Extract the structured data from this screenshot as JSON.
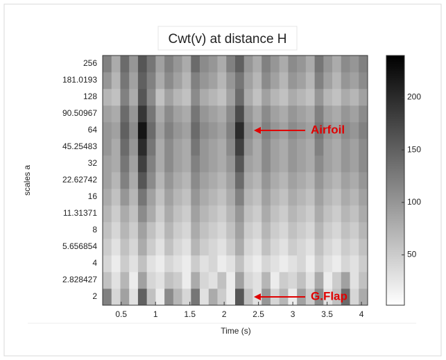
{
  "chart_data": {
    "type": "heatmap",
    "title": "Cwt(v) at distance H",
    "x_label": "Time (s)",
    "y_label": "scales a",
    "rows": [
      2,
      2.828427,
      4,
      5.656854,
      8,
      11.31371,
      16,
      22.62742,
      32,
      45.25483,
      64,
      90.50967,
      128,
      181.0193,
      256
    ],
    "xlim": [
      0.23,
      4.09
    ],
    "xticks": [
      0.5,
      1,
      1.5,
      2,
      2.5,
      3,
      3.5,
      4
    ],
    "colormap": "gray-reversed",
    "clim": [
      2,
      240
    ],
    "colorbar_ticks": [
      50,
      100,
      150,
      200
    ],
    "annotations": [
      "Airfoil",
      "G.Flap"
    ],
    "values": [
      [
        120,
        40,
        90,
        30,
        150,
        60,
        20,
        110,
        70,
        40,
        130,
        30,
        80,
        50,
        20,
        160,
        60,
        30,
        100,
        40,
        70,
        20,
        90,
        50,
        110,
        30,
        60,
        140,
        40,
        80
      ],
      [
        60,
        30,
        70,
        20,
        90,
        40,
        30,
        60,
        50,
        20,
        80,
        40,
        30,
        60,
        20,
        90,
        40,
        30,
        70,
        20,
        50,
        40,
        60,
        30,
        80,
        20,
        50,
        90,
        30,
        60
      ],
      [
        40,
        20,
        50,
        30,
        60,
        30,
        20,
        40,
        30,
        20,
        50,
        30,
        40,
        20,
        30,
        60,
        30,
        20,
        40,
        30,
        20,
        30,
        40,
        20,
        50,
        30,
        20,
        40,
        30,
        50
      ],
      [
        50,
        30,
        60,
        40,
        80,
        50,
        30,
        60,
        40,
        30,
        70,
        50,
        40,
        30,
        50,
        80,
        40,
        30,
        60,
        40,
        30,
        50,
        40,
        30,
        60,
        40,
        30,
        50,
        40,
        60
      ],
      [
        60,
        40,
        70,
        50,
        90,
        60,
        40,
        70,
        50,
        40,
        80,
        60,
        50,
        40,
        60,
        90,
        50,
        40,
        70,
        50,
        40,
        60,
        50,
        40,
        70,
        50,
        40,
        60,
        50,
        70
      ],
      [
        70,
        50,
        80,
        60,
        110,
        80,
        50,
        80,
        60,
        50,
        90,
        70,
        60,
        50,
        70,
        100,
        60,
        50,
        80,
        60,
        50,
        70,
        60,
        50,
        80,
        60,
        50,
        70,
        60,
        80
      ],
      [
        80,
        60,
        100,
        70,
        130,
        90,
        60,
        90,
        70,
        60,
        100,
        80,
        70,
        60,
        80,
        120,
        70,
        60,
        90,
        70,
        60,
        80,
        70,
        60,
        90,
        70,
        60,
        80,
        70,
        90
      ],
      [
        90,
        70,
        120,
        80,
        160,
        110,
        70,
        100,
        80,
        70,
        110,
        90,
        80,
        70,
        90,
        140,
        80,
        70,
        100,
        80,
        70,
        90,
        80,
        70,
        100,
        80,
        70,
        90,
        80,
        100
      ],
      [
        90,
        80,
        130,
        90,
        180,
        120,
        80,
        110,
        90,
        80,
        120,
        100,
        90,
        80,
        100,
        160,
        90,
        80,
        110,
        90,
        80,
        100,
        90,
        80,
        110,
        90,
        80,
        100,
        90,
        110
      ],
      [
        100,
        80,
        140,
        100,
        200,
        130,
        80,
        110,
        90,
        80,
        130,
        100,
        90,
        80,
        110,
        180,
        100,
        80,
        110,
        90,
        80,
        100,
        90,
        80,
        120,
        90,
        80,
        100,
        90,
        110
      ],
      [
        100,
        90,
        150,
        110,
        220,
        140,
        90,
        120,
        100,
        90,
        140,
        110,
        100,
        90,
        120,
        200,
        110,
        90,
        120,
        100,
        90,
        110,
        100,
        90,
        130,
        100,
        90,
        110,
        100,
        120
      ],
      [
        90,
        80,
        140,
        100,
        190,
        130,
        80,
        110,
        90,
        80,
        130,
        100,
        90,
        80,
        110,
        170,
        100,
        80,
        110,
        90,
        80,
        100,
        90,
        80,
        120,
        90,
        80,
        100,
        90,
        110
      ],
      [
        70,
        60,
        120,
        80,
        160,
        110,
        60,
        90,
        70,
        60,
        110,
        80,
        70,
        60,
        90,
        140,
        80,
        60,
        90,
        70,
        60,
        80,
        70,
        60,
        100,
        70,
        60,
        80,
        70,
        90
      ],
      [
        100,
        70,
        130,
        90,
        150,
        120,
        80,
        110,
        90,
        70,
        120,
        100,
        90,
        70,
        100,
        130,
        90,
        70,
        110,
        90,
        70,
        100,
        90,
        70,
        120,
        90,
        70,
        100,
        90,
        110
      ],
      [
        120,
        80,
        140,
        100,
        160,
        130,
        90,
        120,
        100,
        80,
        140,
        110,
        100,
        80,
        120,
        150,
        100,
        80,
        120,
        100,
        80,
        110,
        100,
        80,
        130,
        100,
        80,
        110,
        100,
        120
      ]
    ]
  }
}
